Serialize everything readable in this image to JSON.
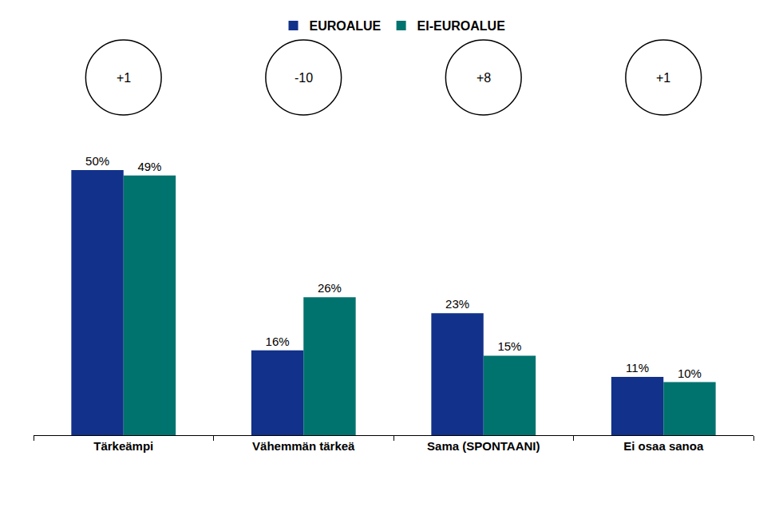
{
  "chart_data": {
    "type": "bar",
    "categories": [
      "Tärkeämpi",
      "Vähemmän tärkeä",
      "Sama (SPONTAANI)",
      "Ei osaa sanoa"
    ],
    "series": [
      {
        "name": "EUROALUE",
        "color": "#12318a",
        "values": [
          50,
          16,
          23,
          11
        ],
        "value_labels": [
          "50%",
          "16%",
          "23%",
          "11%"
        ]
      },
      {
        "name": "EI-EUROALUE",
        "color": "#00736f",
        "values": [
          49,
          26,
          15,
          10
        ],
        "value_labels": [
          "49%",
          "26%",
          "15%",
          "10%"
        ]
      }
    ],
    "annotations": [
      {
        "category": "Tärkeämpi",
        "text": "+1"
      },
      {
        "category": "Vähemmän tärkeä",
        "text": "-10"
      },
      {
        "category": "Sama (SPONTAANI)",
        "text": "+8"
      },
      {
        "category": "Ei osaa sanoa",
        "text": "+1"
      }
    ],
    "ylim": [
      0,
      50
    ],
    "data_labels": true,
    "tick_labels": "x",
    "legend": "top",
    "grid": false
  }
}
